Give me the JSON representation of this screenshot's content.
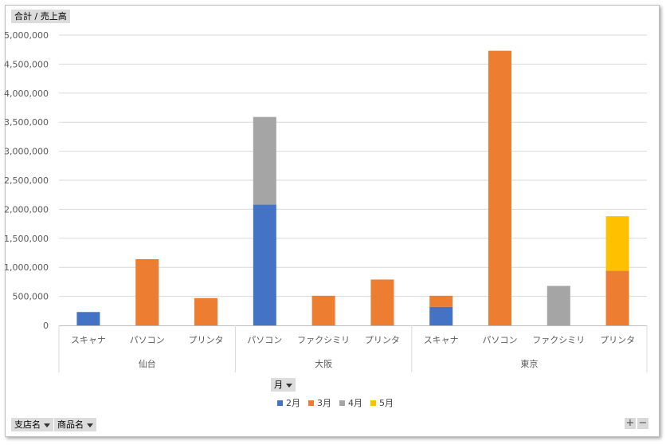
{
  "value_field_label": "合計 / 売上高",
  "column_field_label": "月",
  "row_fields": [
    "支店名",
    "商品名"
  ],
  "zoom_buttons": [
    "+",
    "−"
  ],
  "colors": {
    "2月": "#4472c4",
    "3月": "#ed7d31",
    "4月": "#a5a5a5",
    "5月": "#ffc000"
  },
  "chart_data": {
    "type": "bar",
    "stacked": true,
    "groups": [
      {
        "name": "仙台",
        "categories": [
          "スキャナ",
          "パソコン",
          "プリンタ"
        ]
      },
      {
        "name": "大阪",
        "categories": [
          "パソコン",
          "ファクシミリ",
          "プリンタ"
        ]
      },
      {
        "name": "東京",
        "categories": [
          "スキャナ",
          "パソコン",
          "ファクシミリ",
          "プリンタ"
        ]
      }
    ],
    "categories": [
      "スキャナ",
      "パソコン",
      "プリンタ",
      "パソコン",
      "ファクシミリ",
      "プリンタ",
      "スキャナ",
      "パソコン",
      "ファクシミリ",
      "プリンタ"
    ],
    "series": [
      {
        "name": "2月",
        "values": [
          230000,
          0,
          0,
          2080000,
          0,
          0,
          320000,
          0,
          0,
          0
        ]
      },
      {
        "name": "3月",
        "values": [
          0,
          1140000,
          470000,
          0,
          510000,
          790000,
          190000,
          4730000,
          0,
          940000
        ]
      },
      {
        "name": "4月",
        "values": [
          0,
          0,
          0,
          1510000,
          0,
          0,
          0,
          0,
          680000,
          0
        ]
      },
      {
        "name": "5月",
        "values": [
          0,
          0,
          0,
          0,
          0,
          0,
          0,
          0,
          0,
          940000
        ]
      }
    ],
    "ylim": [
      0,
      5000000
    ],
    "yticks": [
      "0",
      "500,000",
      "1,000,000",
      "1,500,000",
      "2,000,000",
      "2,500,000",
      "3,000,000",
      "3,500,000",
      "4,000,000",
      "4,500,000",
      "5,000,000"
    ],
    "grid": true,
    "legend_position": "bottom"
  }
}
